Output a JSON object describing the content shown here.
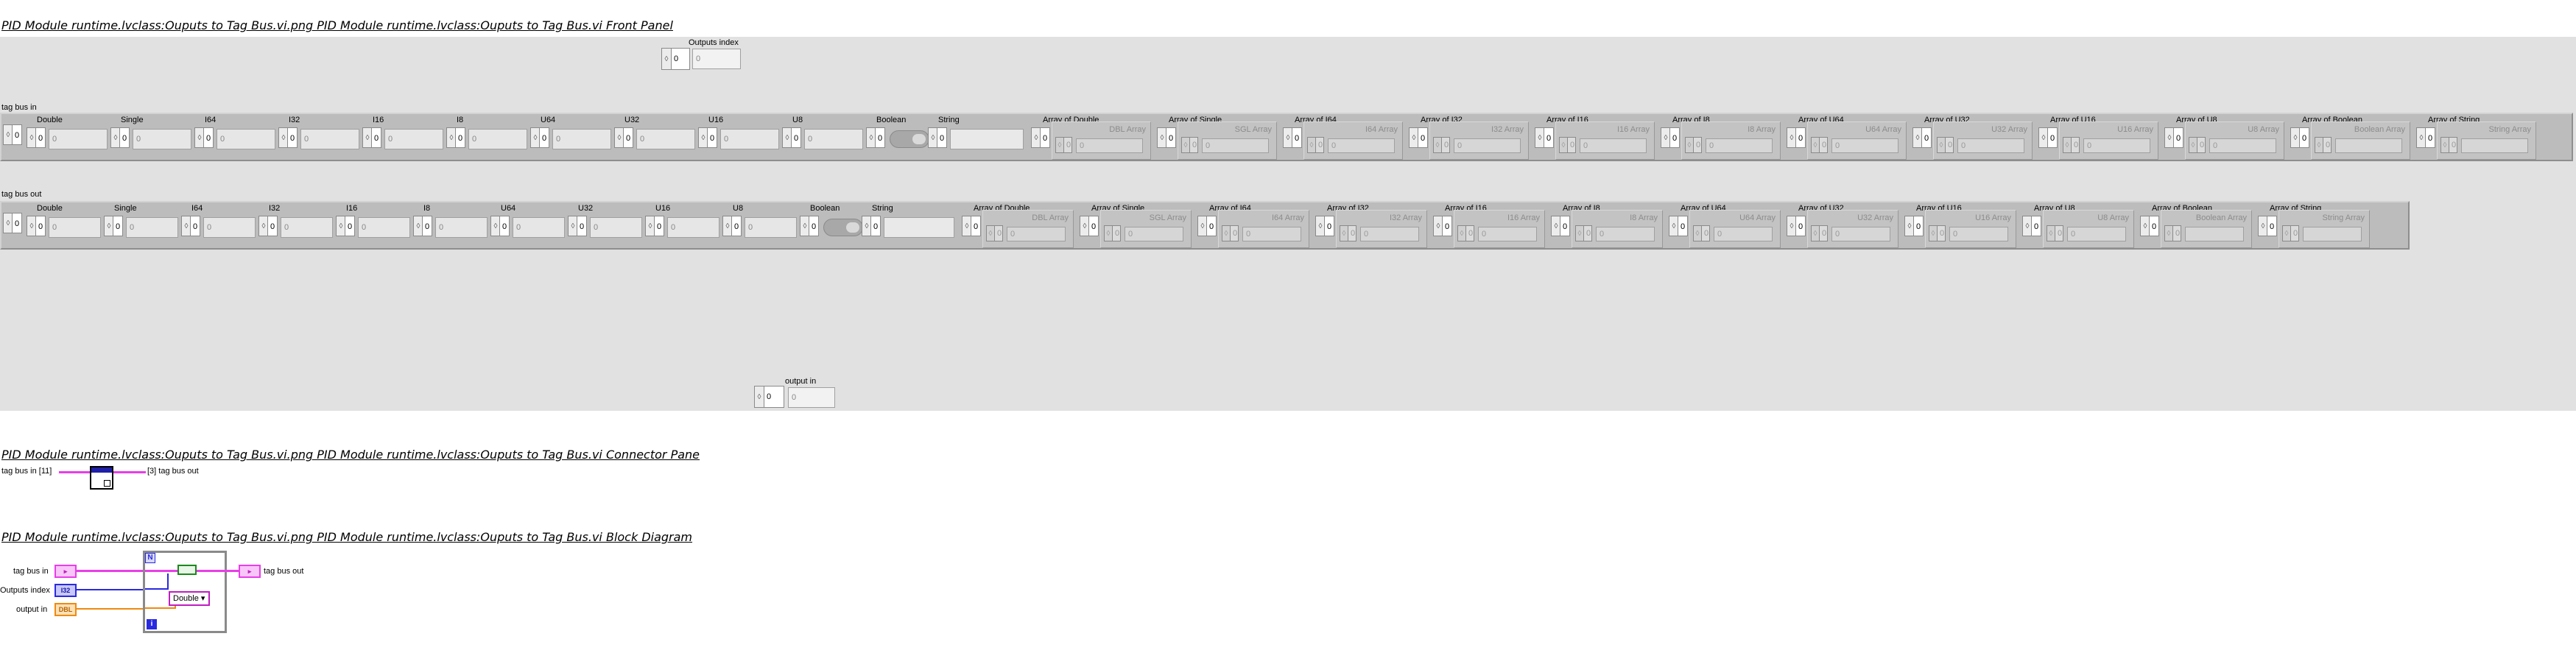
{
  "front_panel": {
    "title": "PID Module runtime.lvclass:Ouputs to Tag Bus.vi.png  PID Module runtime.lvclass:Ouputs to Tag Bus.vi Front Panel",
    "outputs_index": {
      "label": "Outputs index",
      "index": "0",
      "value": "0"
    },
    "output_in": {
      "label": "output in",
      "index": "0",
      "value": "0"
    },
    "tag_bus_in": {
      "label": "tag bus in",
      "scalars": [
        {
          "label": "Double",
          "value": "0"
        },
        {
          "label": "Single",
          "value": "0"
        },
        {
          "label": "I64",
          "value": "0"
        },
        {
          "label": "I32",
          "value": "0"
        },
        {
          "label": "I16",
          "value": "0"
        },
        {
          "label": "I8",
          "value": "0"
        },
        {
          "label": "U64",
          "value": "0"
        },
        {
          "label": "U32",
          "value": "0"
        },
        {
          "label": "U16",
          "value": "0"
        },
        {
          "label": "U8",
          "value": "0"
        }
      ],
      "boolean_label": "Boolean",
      "string_label": "String",
      "arrays": [
        {
          "label": "Array of Double",
          "inner": "DBL Array",
          "index": "0",
          "value": "0"
        },
        {
          "label": "Array of Single",
          "inner": "SGL Array",
          "index": "0",
          "value": "0"
        },
        {
          "label": "Array of I64",
          "inner": "I64 Array",
          "index": "0",
          "value": "0"
        },
        {
          "label": "Array of I32",
          "inner": "I32 Array",
          "index": "0",
          "value": "0"
        },
        {
          "label": "Array of I16",
          "inner": "I16 Array",
          "index": "0",
          "value": "0"
        },
        {
          "label": "Array of I8",
          "inner": "I8 Array",
          "index": "0",
          "value": "0"
        },
        {
          "label": "Array of U64",
          "inner": "U64 Array",
          "index": "0",
          "value": "0"
        },
        {
          "label": "Array of U32",
          "inner": "U32 Array",
          "index": "0",
          "value": "0"
        },
        {
          "label": "Array of U16",
          "inner": "U16 Array",
          "index": "0",
          "value": "0"
        },
        {
          "label": "Array of U8",
          "inner": "U8 Array",
          "index": "0",
          "value": "0"
        },
        {
          "label": "Array of Boolean",
          "inner": "Boolean Array",
          "index": "0",
          "value": ""
        },
        {
          "label": "Array of String",
          "inner": "String Array",
          "index": "0",
          "value": ""
        }
      ],
      "index": "0"
    },
    "tag_bus_out": {
      "label": "tag bus out",
      "scalars": [
        {
          "label": "Double",
          "value": "0"
        },
        {
          "label": "Single",
          "value": "0"
        },
        {
          "label": "I64",
          "value": "0"
        },
        {
          "label": "I32",
          "value": "0"
        },
        {
          "label": "I16",
          "value": "0"
        },
        {
          "label": "I8",
          "value": "0"
        },
        {
          "label": "U64",
          "value": "0"
        },
        {
          "label": "U32",
          "value": "0"
        },
        {
          "label": "U16",
          "value": "0"
        },
        {
          "label": "U8",
          "value": "0"
        }
      ],
      "boolean_label": "Boolean",
      "string_label": "String",
      "arrays": [
        {
          "label": "Array of Double",
          "inner": "DBL Array",
          "index": "0",
          "value": "0"
        },
        {
          "label": "Array of Single",
          "inner": "SGL Array",
          "index": "0",
          "value": "0"
        },
        {
          "label": "Array of I64",
          "inner": "I64 Array",
          "index": "0",
          "value": "0"
        },
        {
          "label": "Array of I32",
          "inner": "I32 Array",
          "index": "0",
          "value": "0"
        },
        {
          "label": "Array of I16",
          "inner": "I16 Array",
          "index": "0",
          "value": "0"
        },
        {
          "label": "Array of I8",
          "inner": "I8 Array",
          "index": "0",
          "value": "0"
        },
        {
          "label": "Array of U64",
          "inner": "U64 Array",
          "index": "0",
          "value": "0"
        },
        {
          "label": "Array of U32",
          "inner": "U32 Array",
          "index": "0",
          "value": "0"
        },
        {
          "label": "Array of U16",
          "inner": "U16 Array",
          "index": "0",
          "value": "0"
        },
        {
          "label": "Array of U8",
          "inner": "U8 Array",
          "index": "0",
          "value": "0"
        },
        {
          "label": "Array of Boolean",
          "inner": "Boolean Array",
          "index": "0",
          "value": ""
        },
        {
          "label": "Array of String",
          "inner": "String Array",
          "index": "0",
          "value": ""
        }
      ],
      "index": "0"
    }
  },
  "connector_pane": {
    "title": "PID Module runtime.lvclass:Ouputs to Tag Bus.vi.png  PID Module runtime.lvclass:Ouputs to Tag Bus.vi Connector Pane",
    "left_label": "tag bus in [11]",
    "right_label": "[3] tag bus out"
  },
  "block_diagram": {
    "title": "PID Module runtime.lvclass:Ouputs to Tag Bus.vi.png  PID Module runtime.lvclass:Ouputs to Tag Bus.vi Block Diagram",
    "tag_bus_in_label": "tag bus in",
    "outputs_index_label": "Outputs index",
    "output_in_label": "output in",
    "tag_bus_out_label": "tag bus out",
    "cluster_terminal": "",
    "i32_terminal": "I32",
    "dbl_terminal": "DBL",
    "case_selector": "Double",
    "loop_n": "N",
    "loop_i": "i",
    "colors": {
      "cluster_wire": "#e83ee8",
      "int_wire": "#2a2ae0",
      "dbl_wire": "#ee8a11"
    }
  }
}
